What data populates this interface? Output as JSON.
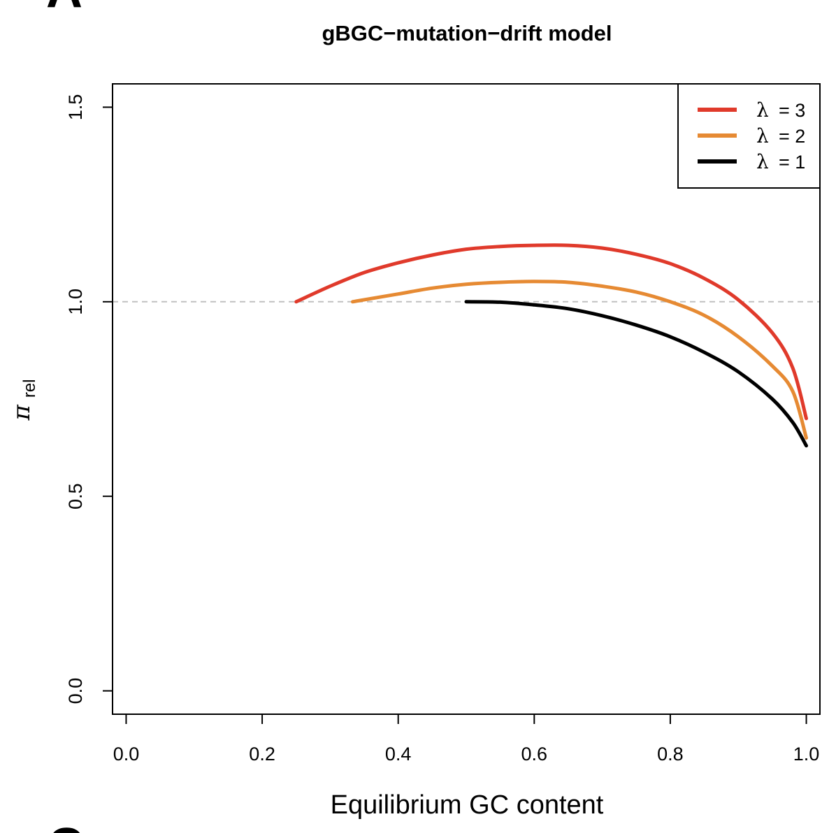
{
  "chart_data": {
    "type": "line",
    "title": "gBGC−mutation−drift model",
    "xlabel": "Equilibrium GC content",
    "ylabel": {
      "symbol": "π",
      "subscript": "rel"
    },
    "xlim": [
      -0.02,
      1.02
    ],
    "ylim": [
      -0.06,
      1.56
    ],
    "xticks": [
      0.0,
      0.2,
      0.4,
      0.6,
      0.8,
      1.0
    ],
    "xtick_labels": [
      "0.0",
      "0.2",
      "0.4",
      "0.6",
      "0.8",
      "1.0"
    ],
    "yticks": [
      0.0,
      0.5,
      1.0,
      1.5
    ],
    "ytick_labels": [
      "0.0",
      "0.5",
      "1.0",
      "1.5"
    ],
    "reference_line": {
      "y": 1.0,
      "style": "dashed",
      "color": "#c0c0c0"
    },
    "legend": {
      "position": "top-right",
      "entries": [
        {
          "symbol": "λ",
          "text": "= 3",
          "color": "#e03a2b"
        },
        {
          "symbol": "λ",
          "text": "= 2",
          "color": "#e68a33"
        },
        {
          "symbol": "λ",
          "text": "= 1",
          "color": "#000000"
        }
      ]
    },
    "series": [
      {
        "lambda": 3,
        "color": "#e03a2b",
        "x": [
          0.25,
          0.3,
          0.35,
          0.4,
          0.45,
          0.5,
          0.55,
          0.6,
          0.65,
          0.7,
          0.75,
          0.8,
          0.85,
          0.9,
          0.95,
          0.98,
          1.0
        ],
        "y": [
          1.0,
          1.04,
          1.075,
          1.1,
          1.12,
          1.135,
          1.142,
          1.145,
          1.145,
          1.138,
          1.122,
          1.098,
          1.06,
          1.005,
          0.92,
          0.83,
          0.7
        ]
      },
      {
        "lambda": 2,
        "color": "#e68a33",
        "x": [
          0.333,
          0.4,
          0.45,
          0.5,
          0.55,
          0.6,
          0.65,
          0.7,
          0.75,
          0.8,
          0.85,
          0.9,
          0.95,
          0.98,
          1.0
        ],
        "y": [
          1.0,
          1.02,
          1.035,
          1.045,
          1.05,
          1.052,
          1.05,
          1.04,
          1.025,
          1.0,
          0.965,
          0.91,
          0.835,
          0.77,
          0.65
        ]
      },
      {
        "lambda": 1,
        "color": "#000000",
        "x": [
          0.5,
          0.55,
          0.6,
          0.65,
          0.7,
          0.75,
          0.8,
          0.85,
          0.9,
          0.95,
          0.98,
          1.0
        ],
        "y": [
          1.0,
          0.999,
          0.992,
          0.982,
          0.964,
          0.94,
          0.91,
          0.87,
          0.82,
          0.75,
          0.69,
          0.63
        ]
      }
    ]
  },
  "panel_letters": {
    "top": "A",
    "bottom": "C"
  }
}
